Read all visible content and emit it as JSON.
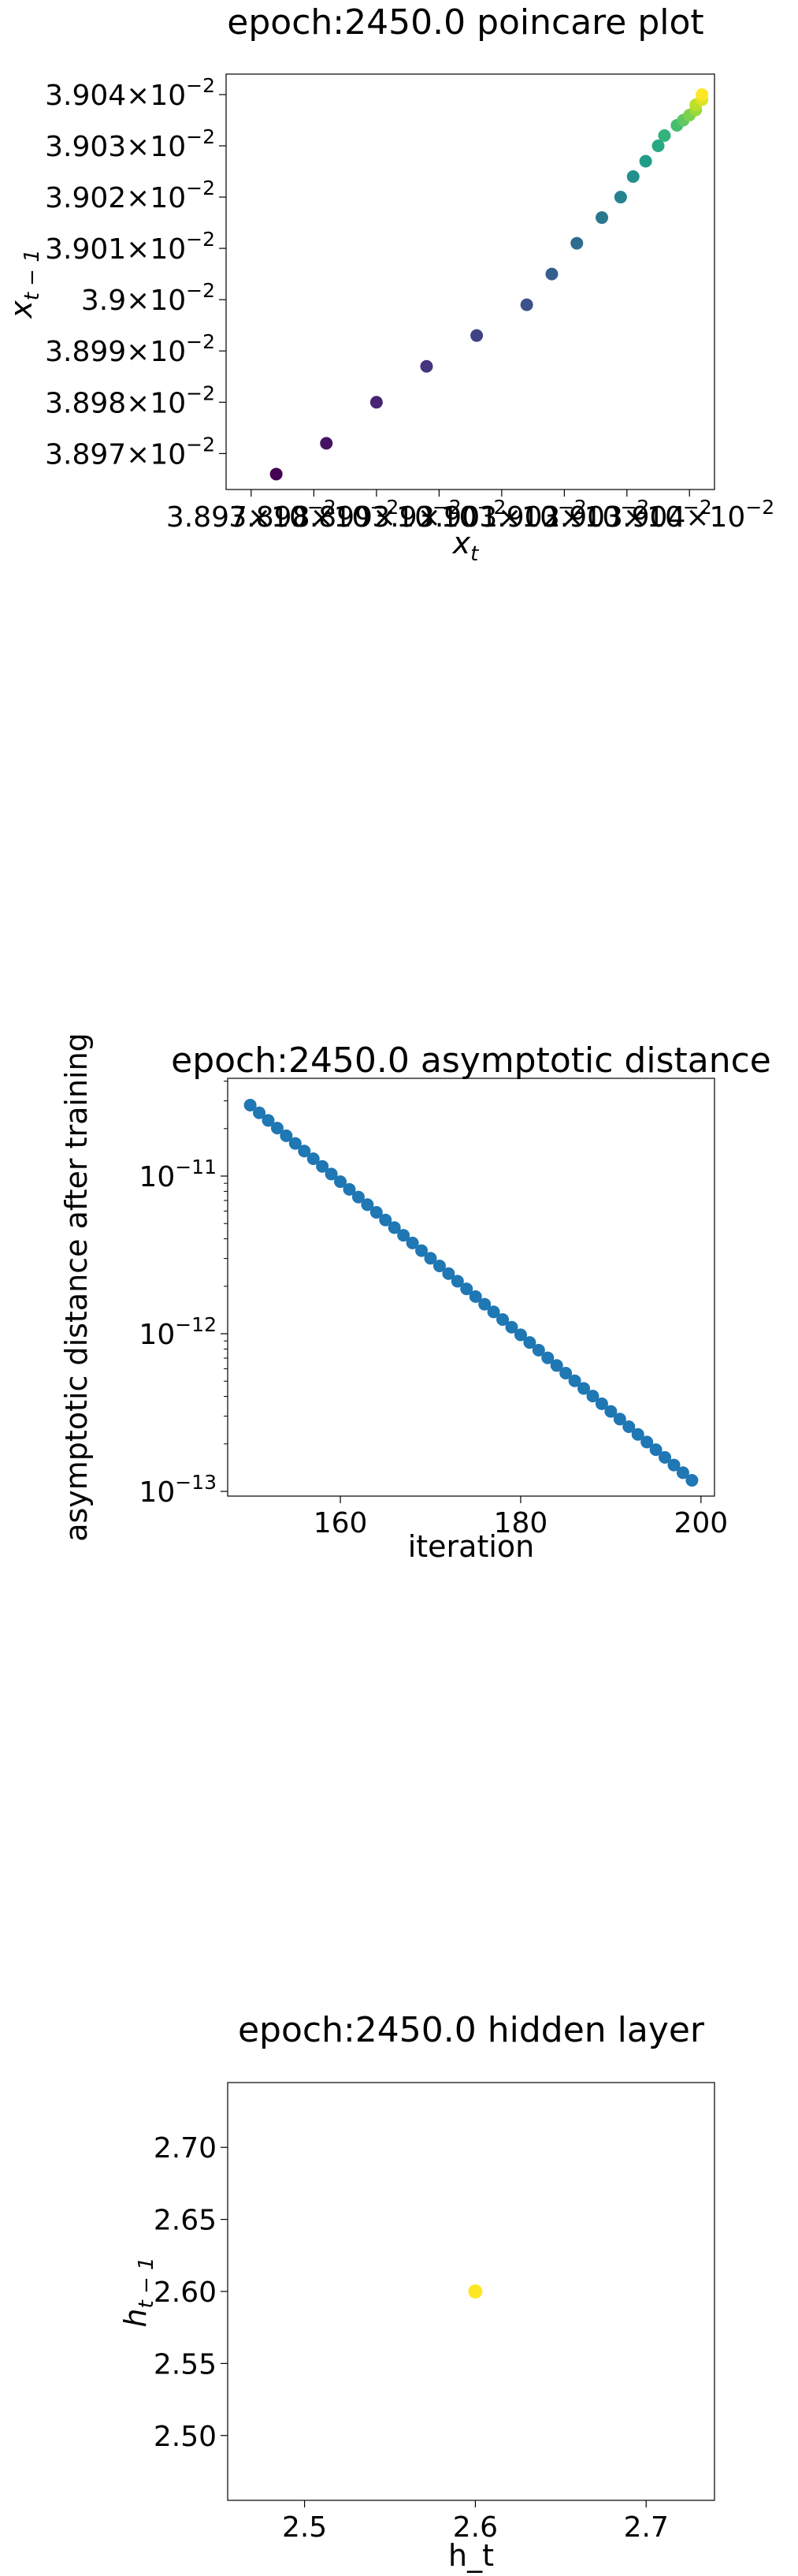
{
  "chart_data": [
    {
      "type": "scatter",
      "title": "epoch:2450.0 poincare plot",
      "xlabel_base": "x",
      "xlabel_sub": "t",
      "ylabel_base": "x",
      "ylabel_sub": "t − 1",
      "log_x": true,
      "log_y": true,
      "colormap": "viridis",
      "colormap_stops": [
        "#440154",
        "#482878",
        "#3e4989",
        "#31688e",
        "#26828e",
        "#1f9e89",
        "#35b779",
        "#6ece58",
        "#b5de2b",
        "#fde725"
      ],
      "xlim": [
        0.038966,
        0.039044
      ],
      "ylim": [
        0.038963,
        0.039044
      ],
      "y_ticks": [
        {
          "value": 0.03897,
          "label": "3.897",
          "exp": "−2"
        },
        {
          "value": 0.03898,
          "label": "3.898",
          "exp": "−2"
        },
        {
          "value": 0.03899,
          "label": "3.899",
          "exp": "−2"
        },
        {
          "value": 0.039,
          "label": "3.9",
          "exp": "−2"
        },
        {
          "value": 0.03901,
          "label": "3.901",
          "exp": "−2"
        },
        {
          "value": 0.03902,
          "label": "3.902",
          "exp": "−2"
        },
        {
          "value": 0.03903,
          "label": "3.903",
          "exp": "−2"
        },
        {
          "value": 0.03904,
          "label": "3.904",
          "exp": "−2"
        }
      ],
      "x_ticks": [
        {
          "value": 0.03897,
          "label": "3.897",
          "exp": "−2"
        },
        {
          "value": 0.03898,
          "label": "3.898",
          "exp": "−2"
        },
        {
          "value": 0.03899,
          "label": "3.899",
          "exp": "−2"
        },
        {
          "value": 0.039,
          "label": "3.9",
          "exp": "−2"
        },
        {
          "value": 0.03901,
          "label": "3.901",
          "exp": "−2"
        },
        {
          "value": 0.03902,
          "label": "3.902",
          "exp": "−2"
        },
        {
          "value": 0.03903,
          "label": "3.903",
          "exp": "−2"
        },
        {
          "value": 0.03904,
          "label": "3.904",
          "exp": "−2"
        }
      ],
      "x_values": [
        0.038974,
        0.038982,
        0.03899,
        0.038998,
        0.039006,
        0.039014,
        0.039018,
        0.039022,
        0.039026,
        0.039029,
        0.039031,
        0.039033,
        0.039035,
        0.039036,
        0.039038,
        0.039039,
        0.03904,
        0.039041,
        0.039041,
        0.039042,
        0.039042
      ],
      "y_values": [
        0.038966,
        0.038972,
        0.03898,
        0.038987,
        0.038993,
        0.038999,
        0.039005,
        0.039011,
        0.039016,
        0.03902,
        0.039024,
        0.039027,
        0.03903,
        0.039032,
        0.039034,
        0.039035,
        0.039036,
        0.039037,
        0.039038,
        0.039039,
        0.03904
      ]
    },
    {
      "type": "scatter",
      "title": "epoch:2450.0 asymptotic distance",
      "xlabel": "iteration",
      "ylabel": "asymptotic distance after training",
      "log_y": true,
      "color": "#1f77b4",
      "xlim": [
        147.5,
        201.5
      ],
      "ylim_log10": [
        -13.03,
        -10.38
      ],
      "x_ticks": [
        160,
        180,
        200
      ],
      "y_ticks": [
        {
          "base": "10",
          "exp": "−11",
          "log10": -11
        },
        {
          "base": "10",
          "exp": "−12",
          "log10": -12
        },
        {
          "base": "10",
          "exp": "−13",
          "log10": -13
        }
      ],
      "x_start": 150,
      "x_end": 199,
      "log10_start": -10.55,
      "log10_end": -12.93
    },
    {
      "type": "scatter",
      "title": "epoch:2450.0 hidden layer",
      "xlabel": "h_t",
      "ylabel_base": "h",
      "ylabel_sub": "t − 1",
      "xlim": [
        2.455,
        2.74
      ],
      "ylim": [
        2.455,
        2.745
      ],
      "x_ticks": [
        2.5,
        2.6,
        2.7
      ],
      "y_ticks": [
        2.5,
        2.55,
        2.6,
        2.65,
        2.7
      ],
      "tick_labels_x": [
        "2.5",
        "2.6",
        "2.7"
      ],
      "tick_labels_y": [
        "2.50",
        "2.55",
        "2.60",
        "2.65",
        "2.70"
      ],
      "x_values": [
        2.6
      ],
      "y_values": [
        2.6
      ],
      "color": "#fde725"
    }
  ]
}
